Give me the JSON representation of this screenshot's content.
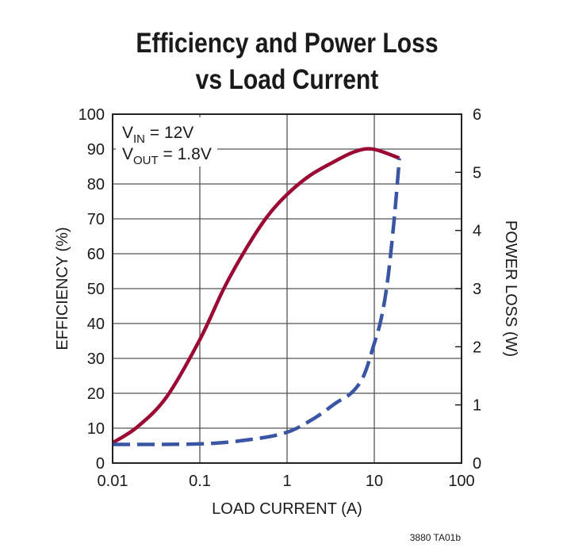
{
  "chart_data": {
    "type": "line",
    "title": [
      "Efficiency and Power Loss",
      "vs Load Current"
    ],
    "xlabel": "LOAD CURRENT (A)",
    "ylabel": "EFFICIENCY (%)",
    "y2label": "POWER LOSS (W)",
    "xscale": "log",
    "xlim": [
      0.01,
      100
    ],
    "ylim": [
      0,
      100
    ],
    "y2lim": [
      0,
      6
    ],
    "grid": true,
    "xticks": [
      "0.01",
      "0.1",
      "1",
      "10",
      "100"
    ],
    "yticks": [
      "0",
      "10",
      "20",
      "30",
      "40",
      "50",
      "60",
      "70",
      "80",
      "90",
      "100"
    ],
    "y2ticks": [
      "0",
      "1",
      "2",
      "3",
      "4",
      "5",
      "6"
    ],
    "annotation": {
      "line1": {
        "main": "V",
        "sub": "IN",
        "rest": " = 12V"
      },
      "line2": {
        "main": "V",
        "sub": "OUT",
        "rest": " = 1.8V"
      }
    },
    "footnote": "3880 TA01b",
    "series": [
      {
        "axis": "left",
        "style": "solid",
        "color": "#9b0a33",
        "x": [
          0.01,
          0.0193,
          0.0417,
          0.1,
          0.19,
          0.34,
          0.59,
          1.0,
          1.8,
          3.3,
          5.9,
          9.6,
          19.4
        ],
        "y": [
          5.8,
          10.4,
          19,
          35.4,
          50.2,
          61.5,
          70.6,
          77,
          82.3,
          86.1,
          89.2,
          90,
          87.4
        ]
      },
      {
        "axis": "right",
        "style": "dashed",
        "color": "#3a55a4",
        "x": [
          0.01,
          0.1,
          0.36,
          1.0,
          2.1,
          3.6,
          5.5,
          7.6,
          10,
          11.9,
          14.1,
          16.8,
          19.4
        ],
        "y": [
          0.32,
          0.33,
          0.4,
          0.53,
          0.78,
          1.03,
          1.21,
          1.51,
          2.06,
          2.46,
          3.1,
          4.15,
          5.24
        ]
      }
    ]
  }
}
